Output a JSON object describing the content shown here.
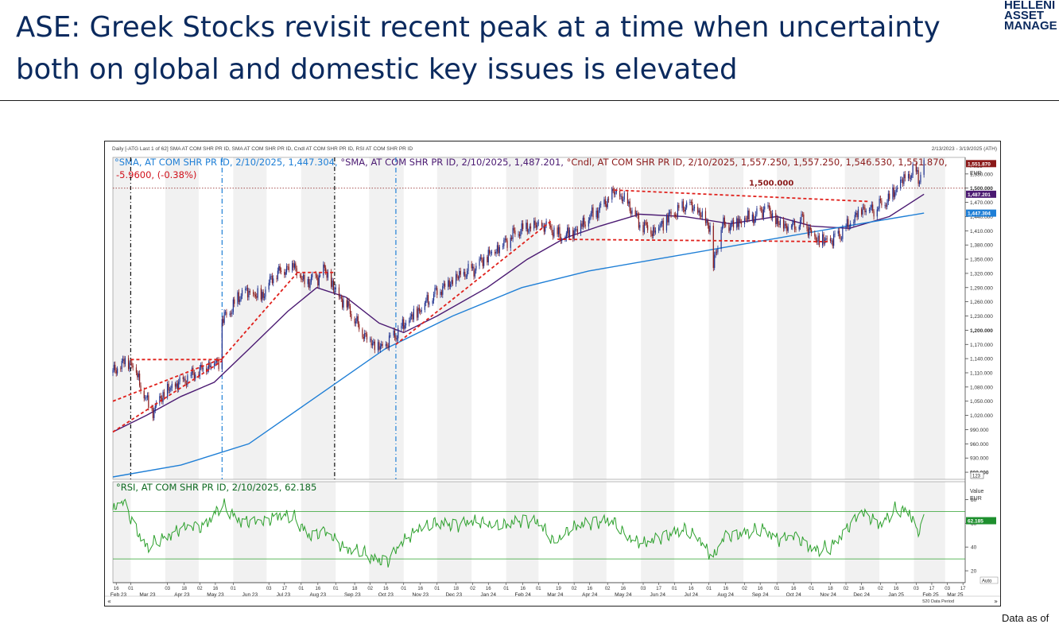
{
  "page": {
    "title": "ASE: Greek Stocks revisit recent peak at a time when uncertainty both on global and domestic key issues is elevated",
    "logo_lines": [
      "HELLENI",
      "ASSET",
      "MANAGE"
    ],
    "footer": "Data as of"
  },
  "chart_header": {
    "caption": "Daily [-ATG Last 1 of 62] SMA AT COM SHR PR ID, SMA AT COM SHR PR ID, Cndl AT COM SHR PR ID, RSI AT COM SHR PR ID",
    "date_range": "2/13/2023 - 3/19/2025 (ATH)",
    "sma200_legend": "SMA, AT COM SHR PR ID, 2/10/2025, 1,447.304,",
    "sma50_legend": "SMA, AT COM SHR PR ID, 2/10/2025, 1,487.201,",
    "cndl_legend": "Cndl, AT COM SHR PR ID, 2/10/2025, 1,557.250, 1,557.250, 1,546.530, 1,551.870,",
    "change_legend": "-5.9600, (-0.38%)",
    "rsi_legend": "RSI, AT COM SHR PR ID, 2/10/2025, 62.185",
    "price_axis_title": "Price",
    "price_axis_unit": "EUR",
    "rsi_axis_title": "Value",
    "rsi_axis_unit": "EUR",
    "auto_label": "Auto",
    "data_period": "520 Data Period",
    "scale_box": "123"
  },
  "chart_data": [
    {
      "type": "candlestick",
      "name": "price-panel",
      "x_range": [
        "2023-02-13",
        "2025-03-19"
      ],
      "ylim": [
        885,
        1565
      ],
      "y_ticks": [
        900,
        930,
        960,
        990,
        1020,
        1050,
        1080,
        1110,
        1140,
        1170,
        1200,
        1230,
        1260,
        1290,
        1320,
        1350,
        1380,
        1410,
        1440,
        1470,
        1500,
        1530
      ],
      "y_tick_labels": [
        "900.000",
        "930.000",
        "960.000",
        "990.000",
        "1,020.000",
        "1,050.000",
        "1,080.000",
        "1,110.000",
        "1,140.000",
        "1,170.000",
        "1,200.000",
        "1,230.000",
        "1,260.000",
        "1,290.000",
        "1,320.000",
        "1,350.000",
        "1,380.000",
        "1,410.000",
        "1,440.000",
        "1,470.000",
        "1,500.000",
        "1,530.000"
      ],
      "last_value_tags": [
        {
          "label": "1,551.870",
          "value": 1551.87,
          "color": "#8b1a1a"
        },
        {
          "label": "1,487.201",
          "value": 1487.2,
          "color": "#4b1a72"
        },
        {
          "label": "1,447.304",
          "value": 1447.3,
          "color": "#1f7fd6"
        }
      ],
      "reference_line": {
        "value": 1500,
        "label": "1,500.000"
      },
      "price_points": [
        [
          "2023-02-13",
          1110
        ],
        [
          "2023-02-24",
          1135
        ],
        [
          "2023-03-03",
          1130
        ],
        [
          "2023-03-09",
          1090
        ],
        [
          "2023-03-15",
          1050
        ],
        [
          "2023-03-22",
          1030
        ],
        [
          "2023-03-28",
          1060
        ],
        [
          "2023-04-06",
          1075
        ],
        [
          "2023-04-18",
          1095
        ],
        [
          "2023-05-02",
          1115
        ],
        [
          "2023-05-12",
          1130
        ],
        [
          "2023-05-19",
          1135
        ],
        [
          "2023-05-22",
          1220
        ],
        [
          "2023-05-29",
          1240
        ],
        [
          "2023-06-09",
          1280
        ],
        [
          "2023-06-26",
          1270
        ],
        [
          "2023-07-07",
          1315
        ],
        [
          "2023-07-17",
          1330
        ],
        [
          "2023-07-25",
          1340
        ],
        [
          "2023-08-03",
          1300
        ],
        [
          "2023-08-15",
          1310
        ],
        [
          "2023-08-22",
          1325
        ],
        [
          "2023-08-31",
          1285
        ],
        [
          "2023-09-12",
          1250
        ],
        [
          "2023-09-22",
          1205
        ],
        [
          "2023-10-03",
          1175
        ],
        [
          "2023-10-12",
          1160
        ],
        [
          "2023-10-20",
          1180
        ],
        [
          "2023-10-27",
          1195
        ],
        [
          "2023-11-07",
          1225
        ],
        [
          "2023-11-21",
          1260
        ],
        [
          "2023-12-05",
          1290
        ],
        [
          "2023-12-19",
          1310
        ],
        [
          "2024-01-03",
          1330
        ],
        [
          "2024-01-17",
          1360
        ],
        [
          "2024-02-01",
          1390
        ],
        [
          "2024-02-15",
          1415
        ],
        [
          "2024-03-01",
          1420
        ],
        [
          "2024-03-13",
          1415
        ],
        [
          "2024-03-21",
          1395
        ],
        [
          "2024-04-01",
          1410
        ],
        [
          "2024-04-12",
          1430
        ],
        [
          "2024-04-26",
          1460
        ],
        [
          "2024-05-08",
          1490
        ],
        [
          "2024-05-20",
          1470
        ],
        [
          "2024-05-31",
          1425
        ],
        [
          "2024-06-12",
          1410
        ],
        [
          "2024-06-27",
          1440
        ],
        [
          "2024-07-12",
          1465
        ],
        [
          "2024-07-22",
          1450
        ],
        [
          "2024-08-02",
          1420
        ],
        [
          "2024-08-05",
          1335
        ],
        [
          "2024-08-12",
          1420
        ],
        [
          "2024-08-28",
          1430
        ],
        [
          "2024-09-12",
          1440
        ],
        [
          "2024-09-20",
          1460
        ],
        [
          "2024-10-02",
          1425
        ],
        [
          "2024-10-16",
          1420
        ],
        [
          "2024-10-24",
          1435
        ],
        [
          "2024-11-04",
          1395
        ],
        [
          "2024-11-15",
          1385
        ],
        [
          "2024-11-26",
          1400
        ],
        [
          "2024-12-06",
          1425
        ],
        [
          "2024-12-17",
          1460
        ],
        [
          "2024-12-27",
          1455
        ],
        [
          "2025-01-08",
          1475
        ],
        [
          "2025-01-22",
          1515
        ],
        [
          "2025-02-03",
          1535
        ],
        [
          "2025-02-06",
          1520
        ],
        [
          "2025-02-10",
          1551.87
        ]
      ],
      "series": [
        {
          "name": "SMA, AT COM SHR PR ID",
          "color": "#4b1a72",
          "points": [
            [
              "2023-02-13",
              985
            ],
            [
              "2023-03-15",
              1020
            ],
            [
              "2023-04-15",
              1060
            ],
            [
              "2023-05-15",
              1090
            ],
            [
              "2023-06-15",
              1160
            ],
            [
              "2023-07-20",
              1240
            ],
            [
              "2023-08-15",
              1290
            ],
            [
              "2023-09-10",
              1270
            ],
            [
              "2023-10-10",
              1215
            ],
            [
              "2023-11-01",
              1195
            ],
            [
              "2023-12-01",
              1230
            ],
            [
              "2024-01-15",
              1290
            ],
            [
              "2024-02-20",
              1350
            ],
            [
              "2024-03-25",
              1395
            ],
            [
              "2024-04-25",
              1420
            ],
            [
              "2024-05-31",
              1445
            ],
            [
              "2024-07-10",
              1440
            ],
            [
              "2024-08-20",
              1425
            ],
            [
              "2024-10-01",
              1440
            ],
            [
              "2024-11-01",
              1420
            ],
            [
              "2024-12-05",
              1415
            ],
            [
              "2025-01-10",
              1440
            ],
            [
              "2025-02-10",
              1487.2
            ]
          ]
        },
        {
          "name": "SMA, AT COM SHR PR ID",
          "color": "#1f7fd6",
          "points": [
            [
              "2023-02-13",
              890
            ],
            [
              "2023-04-15",
              915
            ],
            [
              "2023-06-15",
              960
            ],
            [
              "2023-08-15",
              1060
            ],
            [
              "2023-10-15",
              1160
            ],
            [
              "2023-12-15",
              1230
            ],
            [
              "2024-02-15",
              1290
            ],
            [
              "2024-04-15",
              1325
            ],
            [
              "2024-06-15",
              1350
            ],
            [
              "2024-08-15",
              1375
            ],
            [
              "2024-10-15",
              1400
            ],
            [
              "2024-12-15",
              1425
            ],
            [
              "2025-02-10",
              1447.3
            ]
          ]
        }
      ],
      "annotations": [
        {
          "type": "horizontal-dashed",
          "x": [
            "2023-03-01",
            "2023-05-22"
          ],
          "y": [
            1138,
            1138
          ]
        },
        {
          "type": "trend-dashed",
          "x": [
            "2023-02-13",
            "2023-05-22"
          ],
          "y": [
            1050,
            1140
          ]
        },
        {
          "type": "trend-dashed",
          "x": [
            "2023-02-13",
            "2023-05-22"
          ],
          "y": [
            985,
            1135
          ]
        },
        {
          "type": "trend-dashed",
          "x": [
            "2023-05-22",
            "2023-07-28"
          ],
          "y": [
            1140,
            1320
          ]
        },
        {
          "type": "horizontal-dashed",
          "x": [
            "2023-07-28",
            "2023-08-31"
          ],
          "y": [
            1322,
            1322
          ]
        },
        {
          "type": "trend-dashed",
          "x": [
            "2023-10-25",
            "2024-03-12"
          ],
          "y": [
            1170,
            1430
          ]
        },
        {
          "type": "horizontal-dashed",
          "x": [
            "2024-03-18",
            "2024-11-18"
          ],
          "y": [
            1392,
            1387
          ]
        },
        {
          "type": "trend-dashed",
          "x": [
            "2024-05-08",
            "2024-12-22"
          ],
          "y": [
            1496,
            1472
          ]
        }
      ],
      "vertical_markers": [
        {
          "date": "2023-03-01",
          "style": "black"
        },
        {
          "date": "2023-05-22",
          "style": "blue"
        },
        {
          "date": "2023-08-31",
          "style": "black"
        },
        {
          "date": "2023-10-25",
          "style": "blue"
        }
      ]
    },
    {
      "type": "line",
      "name": "RSI, AT COM SHR PR ID",
      "color": "#2ea12e",
      "ylim": [
        10,
        95
      ],
      "y_ticks": [
        20,
        40,
        60,
        80
      ],
      "y_tick_labels": [
        "20",
        "40",
        "60",
        "80"
      ],
      "guides": [
        30,
        70
      ],
      "last_value_tag": {
        "label": "62.185",
        "value": 62.185
      },
      "points": [
        [
          "2023-02-13",
          70
        ],
        [
          "2023-02-22",
          78
        ],
        [
          "2023-03-06",
          55
        ],
        [
          "2023-03-15",
          40
        ],
        [
          "2023-03-29",
          48
        ],
        [
          "2023-04-15",
          55
        ],
        [
          "2023-05-05",
          57
        ],
        [
          "2023-05-22",
          76
        ],
        [
          "2023-06-08",
          62
        ],
        [
          "2023-06-28",
          60
        ],
        [
          "2023-07-12",
          68
        ],
        [
          "2023-07-25",
          66
        ],
        [
          "2023-08-08",
          50
        ],
        [
          "2023-08-22",
          52
        ],
        [
          "2023-09-08",
          40
        ],
        [
          "2023-09-22",
          38
        ],
        [
          "2023-10-05",
          30
        ],
        [
          "2023-10-18",
          28
        ],
        [
          "2023-10-30",
          42
        ],
        [
          "2023-11-15",
          58
        ],
        [
          "2023-12-01",
          60
        ],
        [
          "2023-12-20",
          58
        ],
        [
          "2024-01-10",
          62
        ],
        [
          "2024-01-31",
          58
        ],
        [
          "2024-02-15",
          62
        ],
        [
          "2024-03-01",
          60
        ],
        [
          "2024-03-15",
          45
        ],
        [
          "2024-03-28",
          55
        ],
        [
          "2024-04-18",
          60
        ],
        [
          "2024-05-06",
          62
        ],
        [
          "2024-05-20",
          50
        ],
        [
          "2024-06-05",
          42
        ],
        [
          "2024-06-20",
          48
        ],
        [
          "2024-07-09",
          55
        ],
        [
          "2024-07-22",
          50
        ],
        [
          "2024-08-05",
          30
        ],
        [
          "2024-08-15",
          48
        ],
        [
          "2024-09-01",
          52
        ],
        [
          "2024-09-20",
          56
        ],
        [
          "2024-10-03",
          46
        ],
        [
          "2024-10-18",
          48
        ],
        [
          "2024-11-04",
          38
        ],
        [
          "2024-11-18",
          40
        ],
        [
          "2024-12-02",
          55
        ],
        [
          "2024-12-16",
          68
        ],
        [
          "2025-01-02",
          60
        ],
        [
          "2025-01-15",
          72
        ],
        [
          "2025-01-28",
          70
        ],
        [
          "2025-02-04",
          52
        ],
        [
          "2025-02-10",
          62.185
        ]
      ]
    }
  ],
  "x_axis": {
    "day_ticks": [
      [
        "2023-02-16",
        "16"
      ],
      [
        "2023-03-01",
        "01"
      ],
      [
        "2023-04-03",
        "03"
      ],
      [
        "2023-04-18",
        "18"
      ],
      [
        "2023-05-02",
        "02"
      ],
      [
        "2023-05-16",
        "16"
      ],
      [
        "2023-06-01",
        "01"
      ],
      [
        "2023-07-03",
        "03"
      ],
      [
        "2023-07-17",
        "17"
      ],
      [
        "2023-08-01",
        "01"
      ],
      [
        "2023-08-16",
        "16"
      ],
      [
        "2023-09-01",
        "01"
      ],
      [
        "2023-09-18",
        "18"
      ],
      [
        "2023-10-02",
        "02"
      ],
      [
        "2023-10-16",
        "16"
      ],
      [
        "2023-11-01",
        "01"
      ],
      [
        "2023-11-16",
        "16"
      ],
      [
        "2023-12-01",
        "01"
      ],
      [
        "2023-12-18",
        "18"
      ],
      [
        "2024-01-02",
        "02"
      ],
      [
        "2024-01-16",
        "16"
      ],
      [
        "2024-02-01",
        "01"
      ],
      [
        "2024-02-16",
        "16"
      ],
      [
        "2024-03-01",
        "01"
      ],
      [
        "2024-03-19",
        "19"
      ],
      [
        "2024-04-02",
        "02"
      ],
      [
        "2024-04-16",
        "16"
      ],
      [
        "2024-05-02",
        "02"
      ],
      [
        "2024-05-16",
        "16"
      ],
      [
        "2024-06-03",
        "03"
      ],
      [
        "2024-06-17",
        "17"
      ],
      [
        "2024-07-01",
        "01"
      ],
      [
        "2024-07-16",
        "16"
      ],
      [
        "2024-08-01",
        "01"
      ],
      [
        "2024-08-16",
        "16"
      ],
      [
        "2024-09-02",
        "02"
      ],
      [
        "2024-09-16",
        "16"
      ],
      [
        "2024-10-01",
        "01"
      ],
      [
        "2024-10-16",
        "16"
      ],
      [
        "2024-11-01",
        "01"
      ],
      [
        "2024-11-18",
        "18"
      ],
      [
        "2024-12-02",
        "02"
      ],
      [
        "2024-12-16",
        "16"
      ],
      [
        "2025-01-02",
        "02"
      ],
      [
        "2025-01-16",
        "16"
      ],
      [
        "2025-02-03",
        "03"
      ],
      [
        "2025-02-17",
        "17"
      ],
      [
        "2025-03-03",
        "03"
      ],
      [
        "2025-03-17",
        "17"
      ]
    ],
    "month_labels": [
      [
        "2023-02-18",
        "Feb 23"
      ],
      [
        "2023-03-16",
        "Mar 23"
      ],
      [
        "2023-04-16",
        "Apr 23"
      ],
      [
        "2023-05-16",
        "May 23"
      ],
      [
        "2023-06-16",
        "Jun 23"
      ],
      [
        "2023-07-16",
        "Jul 23"
      ],
      [
        "2023-08-16",
        "Aug 23"
      ],
      [
        "2023-09-16",
        "Sep 23"
      ],
      [
        "2023-10-16",
        "Oct 23"
      ],
      [
        "2023-11-16",
        "Nov 23"
      ],
      [
        "2023-12-16",
        "Dec 23"
      ],
      [
        "2024-01-16",
        "Jan 24"
      ],
      [
        "2024-02-16",
        "Feb 24"
      ],
      [
        "2024-03-16",
        "Mar 24"
      ],
      [
        "2024-04-16",
        "Apr 24"
      ],
      [
        "2024-05-16",
        "May 24"
      ],
      [
        "2024-06-16",
        "Jun 24"
      ],
      [
        "2024-07-16",
        "Jul 24"
      ],
      [
        "2024-08-16",
        "Aug 24"
      ],
      [
        "2024-09-16",
        "Sep 24"
      ],
      [
        "2024-10-16",
        "Oct 24"
      ],
      [
        "2024-11-16",
        "Nov 24"
      ],
      [
        "2024-12-16",
        "Dec 24"
      ],
      [
        "2025-01-16",
        "Jan 25"
      ],
      [
        "2025-02-16",
        "Feb 25"
      ],
      [
        "2025-03-10",
        "Mar 25"
      ]
    ]
  },
  "colors": {
    "title": "#0b2a5e",
    "candle_up": "#1c2f8f",
    "candle_down": "#8b1a1a",
    "annotation": "#e0201b",
    "sma_fast": "#4b1a72",
    "sma_slow": "#1f7fd6",
    "rsi": "#2ea12e",
    "black_marker": "#111111",
    "blue_marker": "#1f7fd6"
  }
}
